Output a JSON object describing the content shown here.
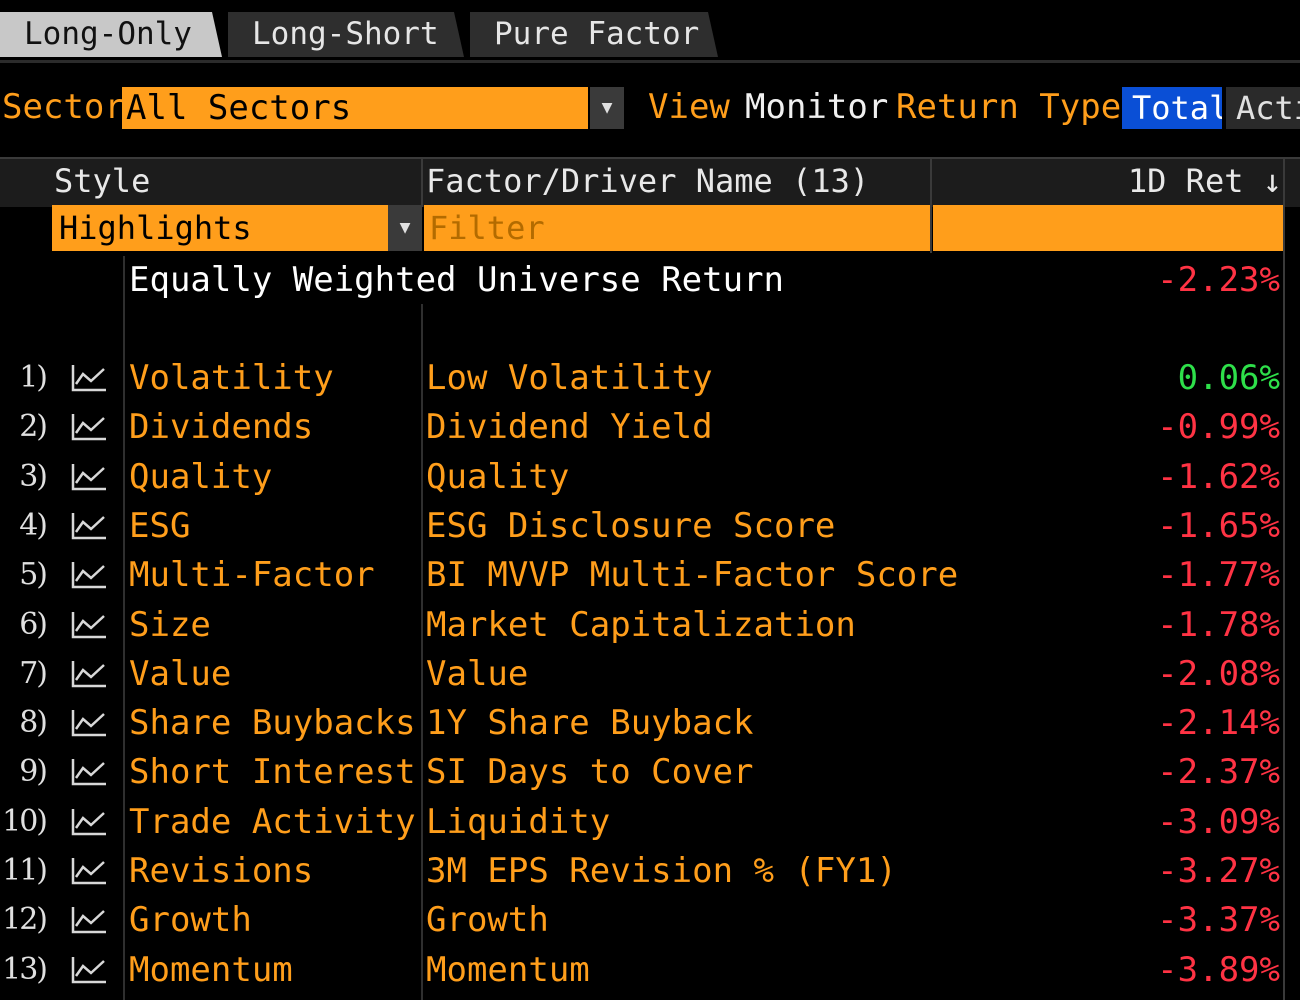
{
  "tabs": [
    {
      "label": "Long-Only",
      "active": true
    },
    {
      "label": "Long-Short",
      "active": false
    },
    {
      "label": "Pure Factor",
      "active": false
    }
  ],
  "toolbar": {
    "sector_label": "Sector",
    "sector_value": "All Sectors",
    "view_label": "View",
    "view_value": "Monitor",
    "return_type_label": "Return Type",
    "return_type_options": [
      "Total",
      "Active"
    ]
  },
  "grid": {
    "col_style": "Style",
    "col_factor": "Factor/Driver Name (13)",
    "col_ret": "1D Ret ↓",
    "highlights_value": "Highlights",
    "filter_placeholder": "Filter",
    "universe_label": "Equally Weighted Universe Return",
    "universe_ret": "-2.23%",
    "rows": [
      {
        "num": "1)",
        "style": "Volatility",
        "factor": "Low Volatility",
        "ret": "0.06%",
        "positive": true
      },
      {
        "num": "2)",
        "style": "Dividends",
        "factor": "Dividend Yield",
        "ret": "-0.99%",
        "positive": false
      },
      {
        "num": "3)",
        "style": "Quality",
        "factor": "Quality",
        "ret": "-1.62%",
        "positive": false
      },
      {
        "num": "4)",
        "style": "ESG",
        "factor": "ESG Disclosure Score",
        "ret": "-1.65%",
        "positive": false
      },
      {
        "num": "5)",
        "style": "Multi-Factor",
        "factor": "BI MVVP Multi-Factor Score",
        "ret": "-1.77%",
        "positive": false
      },
      {
        "num": "6)",
        "style": "Size",
        "factor": "Market Capitalization",
        "ret": "-1.78%",
        "positive": false
      },
      {
        "num": "7)",
        "style": "Value",
        "factor": "Value",
        "ret": "-2.08%",
        "positive": false
      },
      {
        "num": "8)",
        "style": "Share Buybacks",
        "factor": "1Y Share Buyback",
        "ret": "-2.14%",
        "positive": false
      },
      {
        "num": "9)",
        "style": "Short Interest",
        "factor": "SI Days to Cover",
        "ret": "-2.37%",
        "positive": false
      },
      {
        "num": "10)",
        "style": "Trade Activity",
        "factor": "Liquidity",
        "ret": "-3.09%",
        "positive": false
      },
      {
        "num": "11)",
        "style": "Revisions",
        "factor": "3M EPS Revision % (FY1)",
        "ret": "-3.27%",
        "positive": false
      },
      {
        "num": "12)",
        "style": "Growth",
        "factor": "Growth",
        "ret": "-3.37%",
        "positive": false
      },
      {
        "num": "13)",
        "style": "Momentum",
        "factor": "Momentum",
        "ret": "-3.89%",
        "positive": false
      }
    ],
    "row_icon": "line-chart-icon"
  },
  "colors": {
    "accent_orange": "#ff9e1b",
    "selected_blue": "#0a4fd6",
    "negative_red": "#ff3344",
    "positive_green": "#2ee04a"
  }
}
